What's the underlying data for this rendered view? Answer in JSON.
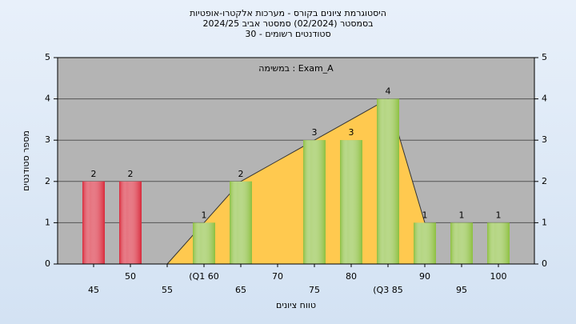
{
  "chart_data": {
    "type": "bar",
    "title": "היסטוגרמת ציונים בקורס - מערכות אלקטרו-אופטיות",
    "subtitle": "בסמסטר  (02/2024)  סמסטר אביב 2024/25",
    "subtitle2": "סטודנטים רשומים - 30",
    "annotation": "במשימה : Exam_A",
    "x_label": "טווח ציונים",
    "y_label": "מספר סטודנטים",
    "categories": [
      "45",
      "50",
      "55",
      "(Q1 60",
      "65",
      "70",
      "75",
      "80",
      "(Q3 85",
      "90",
      "95",
      "100"
    ],
    "values": [
      2,
      2,
      0,
      1,
      2,
      0,
      3,
      3,
      4,
      1,
      1,
      1
    ],
    "colors": [
      "#d8283a",
      "#d8283a",
      "#8cbf3f",
      "#8cbf3f",
      "#8cbf3f",
      "#8cbf3f",
      "#8cbf3f",
      "#8cbf3f",
      "#8cbf3f",
      "#8cbf3f",
      "#8cbf3f",
      "#8cbf3f"
    ],
    "area": {
      "color": "#ffc94f",
      "values": [
        null,
        null,
        0,
        1,
        2,
        2.5,
        3,
        3.5,
        4,
        1,
        null,
        null
      ]
    },
    "ylim": [
      0,
      5
    ],
    "yticks": [
      0,
      1,
      2,
      3,
      4,
      5
    ],
    "grid": true
  }
}
